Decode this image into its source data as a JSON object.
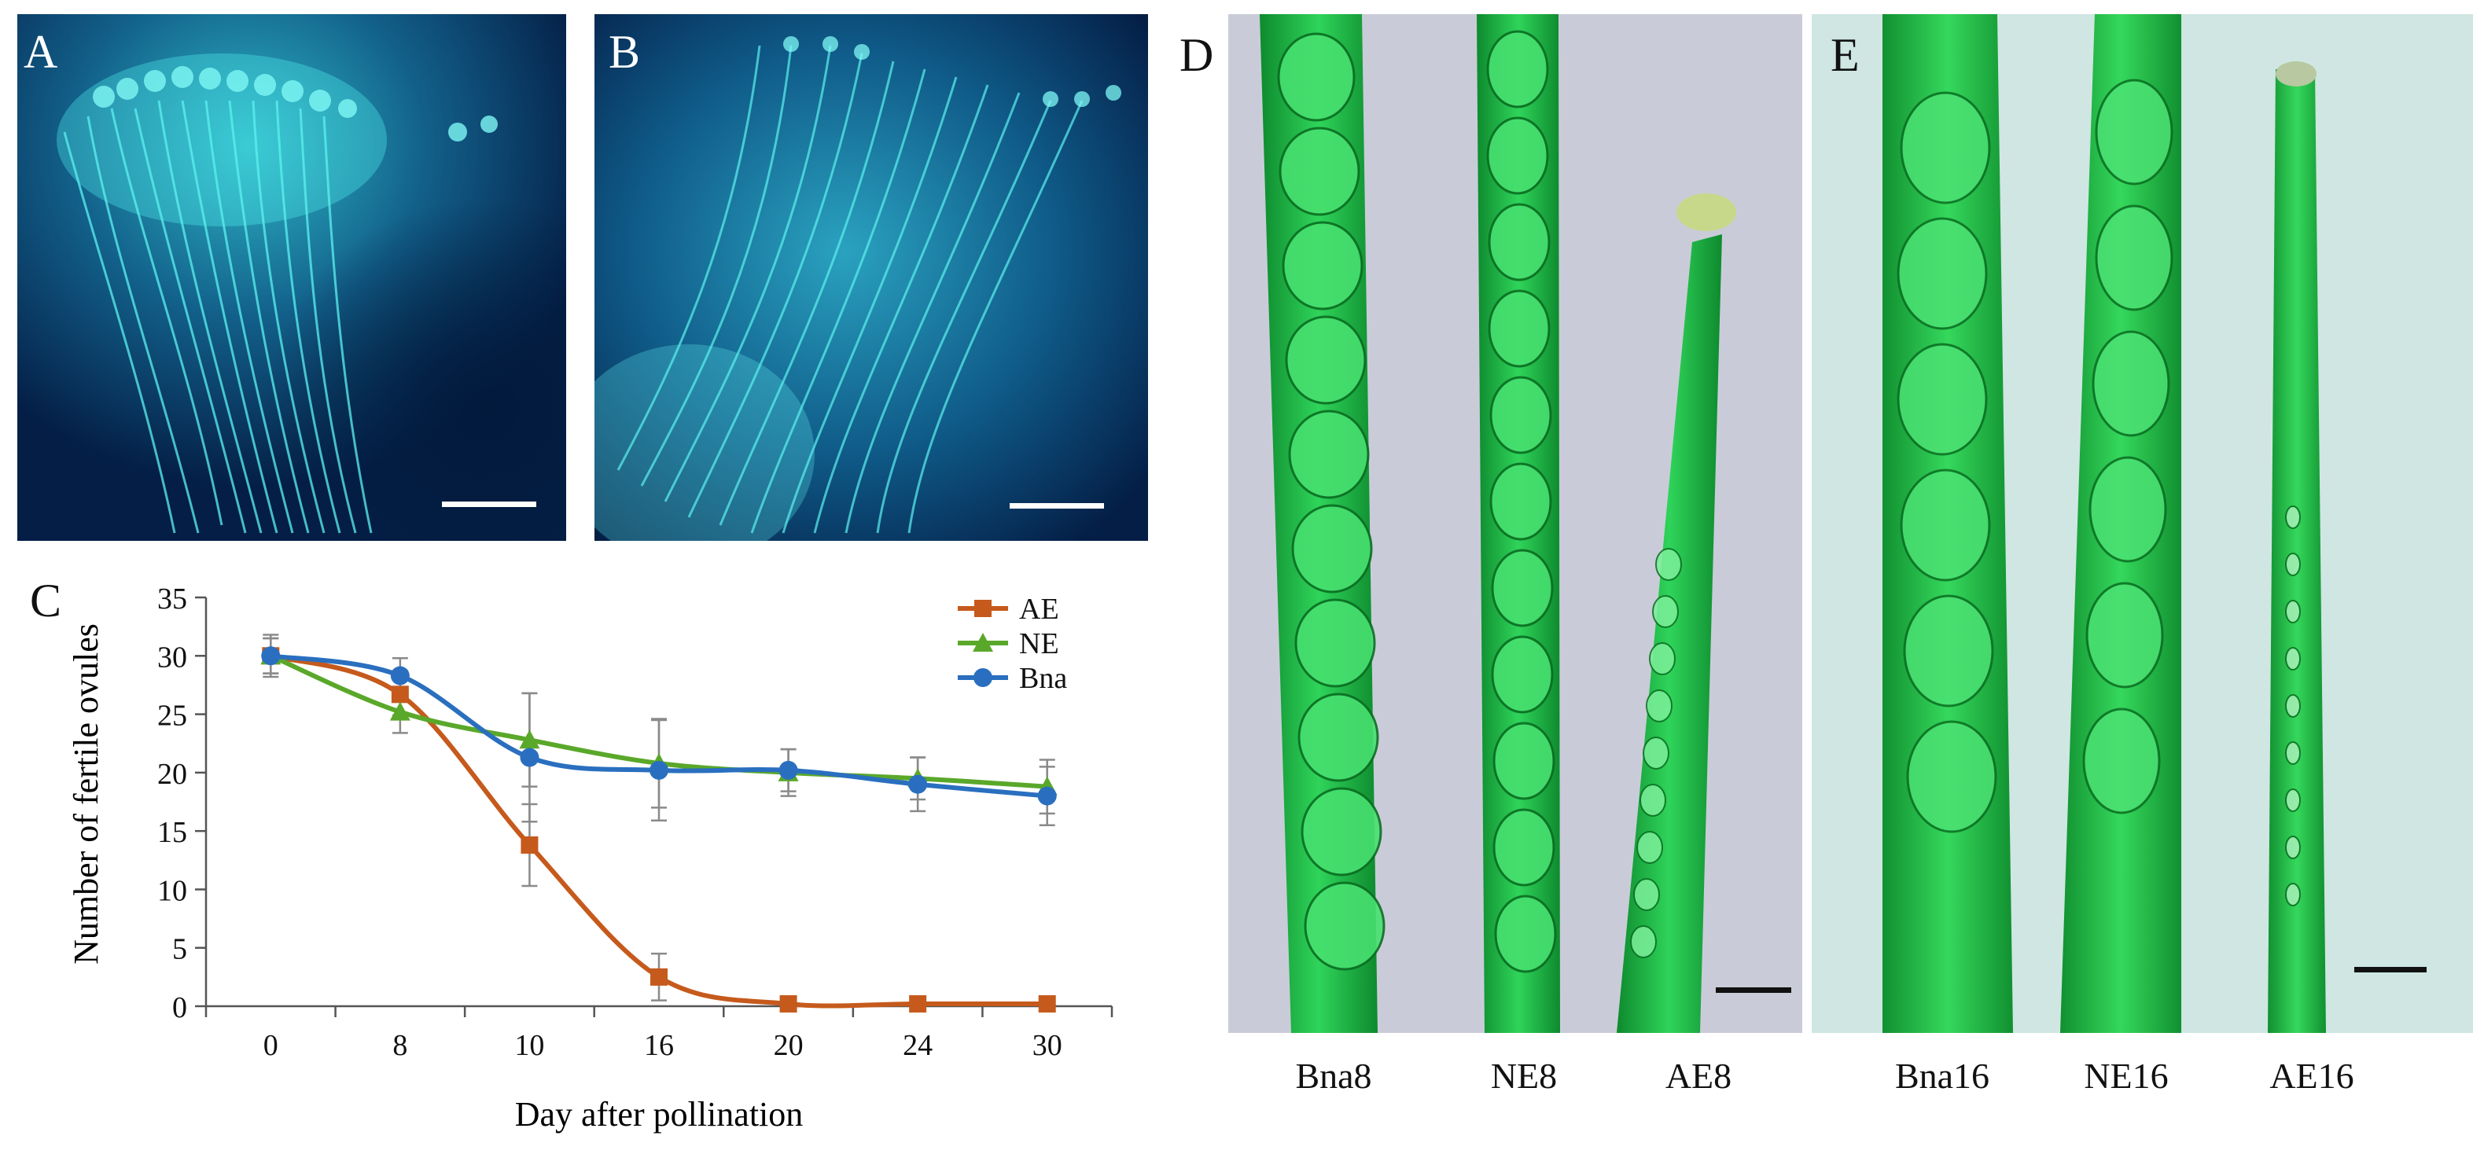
{
  "panels": {
    "a": {
      "letter": "A"
    },
    "b": {
      "letter": "B"
    },
    "c": {
      "letter": "C"
    },
    "d": {
      "letter": "D",
      "captions": [
        "Bna8",
        "NE8",
        "AE8"
      ]
    },
    "e": {
      "letter": "E",
      "captions": [
        "Bna16",
        "NE16",
        "AE16"
      ]
    }
  },
  "colors": {
    "AE": "#c55a1c",
    "NE": "#5aa82a",
    "Bna": "#2a6fbf",
    "error_bar": "#8a8a8a",
    "fluorescence_bg": "#062a55",
    "pollen_tube": "#3fe0e0",
    "silique_green": "#22c84a"
  },
  "chart_data": {
    "type": "line",
    "categories": [
      "0",
      "8",
      "10",
      "16",
      "20",
      "24",
      "30"
    ],
    "xlabel": "Day after pollination",
    "ylabel": "Number of fertile ovules",
    "ylim": [
      0,
      35
    ],
    "yticks": [
      0,
      5,
      10,
      15,
      20,
      25,
      30,
      35
    ],
    "grid": false,
    "legend_position": "top-right",
    "series": [
      {
        "name": "AE",
        "marker": "square",
        "color": "#c55a1c",
        "values": [
          30,
          26.7,
          13.8,
          2.5,
          0.2,
          0.2,
          0.2
        ],
        "errors": [
          1.5,
          1.8,
          3.5,
          2.0,
          0.2,
          0.2,
          0.2
        ]
      },
      {
        "name": "NE",
        "marker": "triangle",
        "color": "#5aa82a",
        "values": [
          30,
          25.2,
          22.8,
          20.8,
          20.0,
          19.5,
          18.8
        ],
        "errors": [
          1.8,
          1.8,
          4.0,
          3.8,
          2.0,
          1.8,
          2.3
        ]
      },
      {
        "name": "Bna",
        "marker": "circle",
        "color": "#2a6fbf",
        "values": [
          30,
          28.3,
          21.3,
          20.2,
          20.2,
          19.0,
          18.0
        ],
        "errors": [
          1.5,
          1.5,
          5.5,
          4.3,
          1.8,
          2.3,
          2.5
        ]
      }
    ]
  }
}
